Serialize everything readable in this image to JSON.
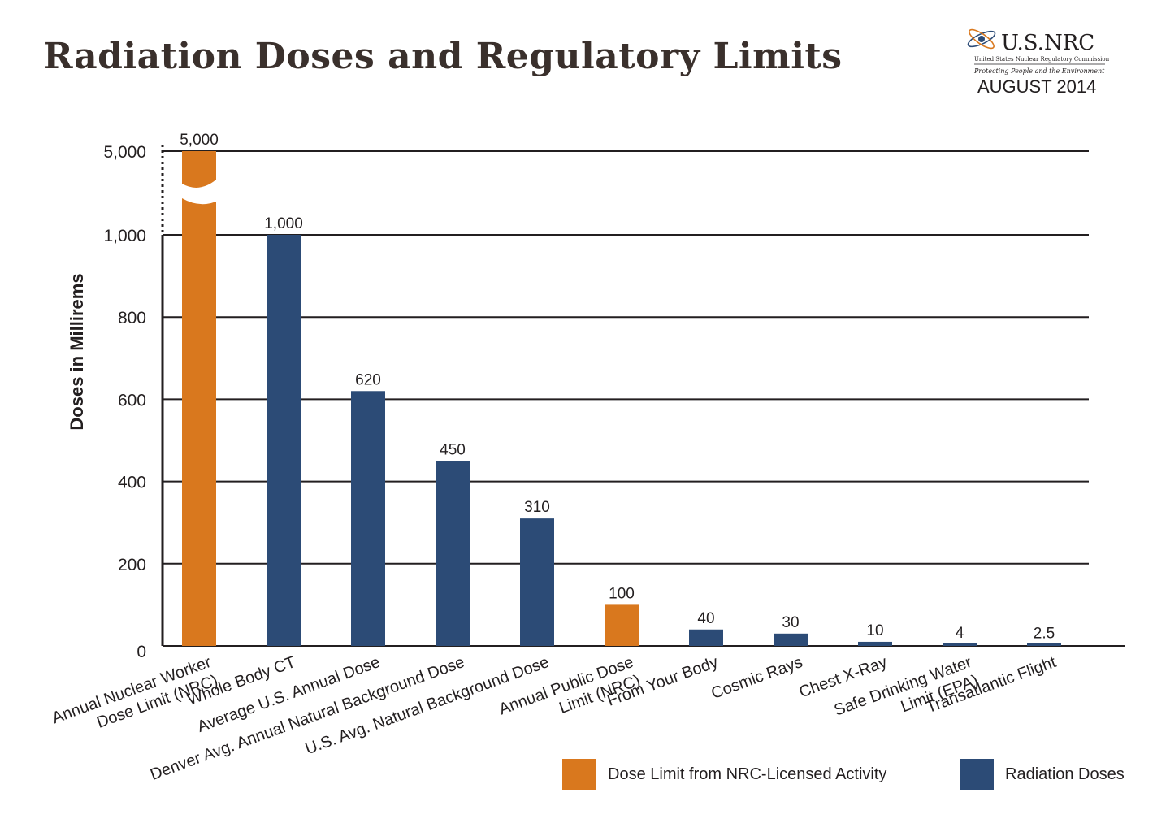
{
  "title": "Radiation Doses and Regulatory Limits",
  "logo": {
    "brand": "U.S.NRC",
    "agency": "United States Nuclear Regulatory Commission",
    "tagline": "Protecting People and the Environment",
    "date": "AUGUST 2014"
  },
  "colors": {
    "limit": "#d9781e",
    "dose": "#2c4b76",
    "grid": "#231f20",
    "text": "#231f20"
  },
  "legend": [
    {
      "label": "Dose Limit from NRC-Licensed Activity",
      "color_key": "limit"
    },
    {
      "label": "Radiation Doses",
      "color_key": "dose"
    }
  ],
  "chart_data": {
    "type": "bar",
    "ylabel": "Doses in Millirems",
    "xlabel": "",
    "y_axis": "broken: linear 0–1,000 with a break up to 5,000",
    "ylim": [
      0,
      5000
    ],
    "yticks": [
      0,
      200,
      400,
      600,
      800,
      1000,
      5000
    ],
    "ytick_labels": [
      "0",
      "200",
      "400",
      "600",
      "800",
      "1,000",
      "5,000"
    ],
    "grid": true,
    "categories": [
      [
        "Annual Nuclear Worker",
        "Dose Limit (NRC)"
      ],
      [
        "Whole Body CT"
      ],
      [
        "Average U.S. Annual Dose"
      ],
      [
        "Denver Avg. Annual Natural Background Dose"
      ],
      [
        "U.S. Avg. Natural Background Dose"
      ],
      [
        "Annual Public Dose",
        "Limit (NRC)"
      ],
      [
        "From Your Body"
      ],
      [
        "Cosmic Rays"
      ],
      [
        "Chest X-Ray"
      ],
      [
        "Safe Drinking Water",
        "Limit (EPA)"
      ],
      [
        "Transatlantic Flight"
      ]
    ],
    "values": [
      5000,
      1000,
      620,
      450,
      310,
      100,
      40,
      30,
      10,
      4,
      2.5
    ],
    "value_labels": [
      "5,000",
      "1,000",
      "620",
      "450",
      "310",
      "100",
      "40",
      "30",
      "10",
      "4",
      "2.5"
    ],
    "bar_kind": [
      "limit",
      "dose",
      "dose",
      "dose",
      "dose",
      "limit",
      "dose",
      "dose",
      "dose",
      "dose",
      "dose"
    ]
  }
}
